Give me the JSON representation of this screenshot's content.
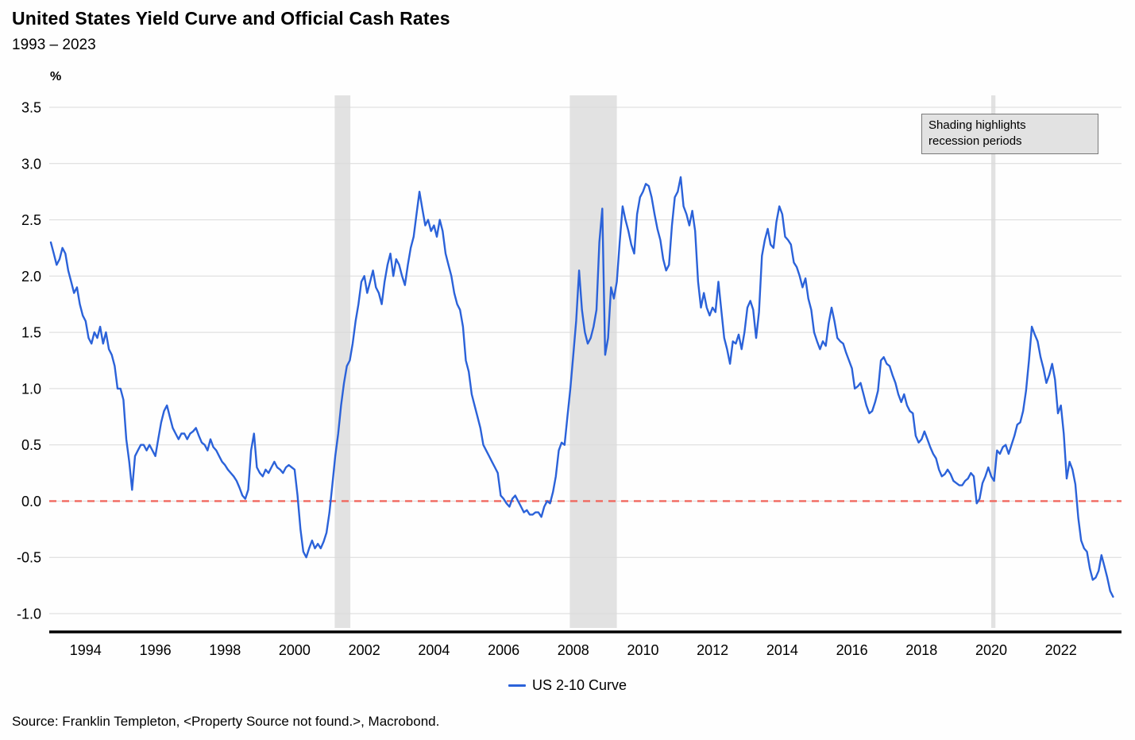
{
  "title": "United States Yield Curve and Official Cash Rates",
  "subtitle": "1993 – 2023",
  "y_axis_unit": "%",
  "annotation": {
    "line1": "Shading highlights",
    "line2": "recession periods"
  },
  "legend": {
    "label": "US 2-10 Curve"
  },
  "source": "Source: Franklin Templeton, <Property Source not found.>, Macrobond.",
  "chart_data": {
    "type": "line",
    "title": "United States Yield Curve and Official Cash Rates",
    "subtitle": "1993 – 2023",
    "xlabel": "",
    "ylabel": "%",
    "ylim": [
      -1.0,
      3.5
    ],
    "xlim": [
      1993.0,
      2023.7
    ],
    "grid": "horizontal",
    "legend_position": "bottom-center",
    "y_ticks": [
      3.5,
      3.0,
      2.5,
      2.0,
      1.5,
      1.0,
      0.5,
      0.0,
      -0.5,
      -1.0
    ],
    "x_ticks": [
      1994,
      1996,
      1998,
      2000,
      2002,
      2004,
      2006,
      2008,
      2010,
      2012,
      2014,
      2016,
      2018,
      2020,
      2022
    ],
    "zero_line": 0.0,
    "recession_bands": [
      {
        "start": 2001.15,
        "end": 2001.6
      },
      {
        "start": 2007.9,
        "end": 2009.25
      },
      {
        "start": 2020.0,
        "end": 2020.12
      }
    ],
    "colors": {
      "line": "#2b62d9",
      "zero_line": "#f0685e",
      "gridline": "#d9d9d9",
      "recession_shading": "#e2e2e2",
      "axis": "#000000"
    },
    "x_start": 1993.0,
    "points_per_year": 12,
    "series": [
      {
        "name": "US 2-10 Curve",
        "values": [
          2.3,
          2.2,
          2.1,
          2.15,
          2.25,
          2.2,
          2.05,
          1.95,
          1.85,
          1.9,
          1.75,
          1.65,
          1.6,
          1.45,
          1.4,
          1.5,
          1.45,
          1.55,
          1.4,
          1.5,
          1.35,
          1.3,
          1.2,
          1.0,
          1.0,
          0.9,
          0.55,
          0.35,
          0.1,
          0.4,
          0.45,
          0.5,
          0.5,
          0.45,
          0.5,
          0.45,
          0.4,
          0.55,
          0.7,
          0.8,
          0.85,
          0.75,
          0.65,
          0.6,
          0.55,
          0.6,
          0.6,
          0.55,
          0.6,
          0.62,
          0.65,
          0.58,
          0.52,
          0.5,
          0.45,
          0.55,
          0.48,
          0.45,
          0.4,
          0.35,
          0.32,
          0.28,
          0.25,
          0.22,
          0.18,
          0.12,
          0.05,
          0.02,
          0.1,
          0.45,
          0.6,
          0.3,
          0.25,
          0.22,
          0.28,
          0.25,
          0.3,
          0.35,
          0.3,
          0.28,
          0.25,
          0.3,
          0.32,
          0.3,
          0.28,
          0.05,
          -0.25,
          -0.45,
          -0.5,
          -0.42,
          -0.35,
          -0.42,
          -0.38,
          -0.42,
          -0.36,
          -0.28,
          -0.1,
          0.15,
          0.4,
          0.6,
          0.85,
          1.05,
          1.2,
          1.25,
          1.4,
          1.6,
          1.75,
          1.95,
          2.0,
          1.85,
          1.95,
          2.05,
          1.9,
          1.85,
          1.75,
          1.95,
          2.1,
          2.2,
          2.0,
          2.15,
          2.1,
          2.0,
          1.92,
          2.1,
          2.25,
          2.35,
          2.55,
          2.75,
          2.6,
          2.45,
          2.5,
          2.4,
          2.45,
          2.35,
          2.5,
          2.4,
          2.2,
          2.1,
          2.0,
          1.85,
          1.75,
          1.7,
          1.55,
          1.25,
          1.15,
          0.95,
          0.85,
          0.75,
          0.65,
          0.5,
          0.45,
          0.4,
          0.35,
          0.3,
          0.25,
          0.05,
          0.02,
          -0.02,
          -0.05,
          0.02,
          0.05,
          0.0,
          -0.05,
          -0.1,
          -0.08,
          -0.12,
          -0.12,
          -0.1,
          -0.1,
          -0.14,
          -0.05,
          0.0,
          -0.02,
          0.08,
          0.22,
          0.45,
          0.52,
          0.5,
          0.75,
          1.0,
          1.3,
          1.6,
          2.05,
          1.7,
          1.5,
          1.4,
          1.45,
          1.55,
          1.7,
          2.3,
          2.6,
          1.3,
          1.45,
          1.9,
          1.8,
          1.95,
          2.3,
          2.62,
          2.5,
          2.4,
          2.28,
          2.2,
          2.55,
          2.7,
          2.75,
          2.82,
          2.8,
          2.7,
          2.55,
          2.42,
          2.32,
          2.15,
          2.05,
          2.1,
          2.45,
          2.7,
          2.75,
          2.88,
          2.62,
          2.55,
          2.45,
          2.58,
          2.4,
          1.95,
          1.72,
          1.85,
          1.72,
          1.65,
          1.72,
          1.68,
          1.95,
          1.7,
          1.45,
          1.35,
          1.22,
          1.42,
          1.4,
          1.48,
          1.35,
          1.5,
          1.72,
          1.78,
          1.7,
          1.45,
          1.68,
          2.18,
          2.32,
          2.42,
          2.28,
          2.25,
          2.48,
          2.62,
          2.55,
          2.35,
          2.32,
          2.28,
          2.12,
          2.08,
          2.0,
          1.9,
          1.98,
          1.8,
          1.7,
          1.5,
          1.42,
          1.35,
          1.42,
          1.38,
          1.58,
          1.72,
          1.6,
          1.45,
          1.42,
          1.4,
          1.32,
          1.25,
          1.18,
          1.0,
          1.02,
          1.05,
          0.95,
          0.85,
          0.78,
          0.8,
          0.88,
          0.98,
          1.25,
          1.28,
          1.22,
          1.2,
          1.12,
          1.05,
          0.95,
          0.88,
          0.95,
          0.85,
          0.8,
          0.78,
          0.58,
          0.52,
          0.55,
          0.62,
          0.55,
          0.48,
          0.42,
          0.38,
          0.28,
          0.22,
          0.24,
          0.28,
          0.24,
          0.18,
          0.16,
          0.14,
          0.14,
          0.18,
          0.2,
          0.25,
          0.22,
          -0.02,
          0.02,
          0.16,
          0.22,
          0.3,
          0.22,
          0.18,
          0.45,
          0.42,
          0.48,
          0.5,
          0.42,
          0.5,
          0.58,
          0.68,
          0.7,
          0.8,
          0.98,
          1.25,
          1.55,
          1.48,
          1.42,
          1.28,
          1.18,
          1.05,
          1.12,
          1.22,
          1.08,
          0.78,
          0.85,
          0.6,
          0.2,
          0.35,
          0.28,
          0.15,
          -0.15,
          -0.35,
          -0.42,
          -0.45,
          -0.6,
          -0.7,
          -0.68,
          -0.62,
          -0.48,
          -0.58,
          -0.68,
          -0.8,
          -0.85
        ]
      }
    ]
  }
}
